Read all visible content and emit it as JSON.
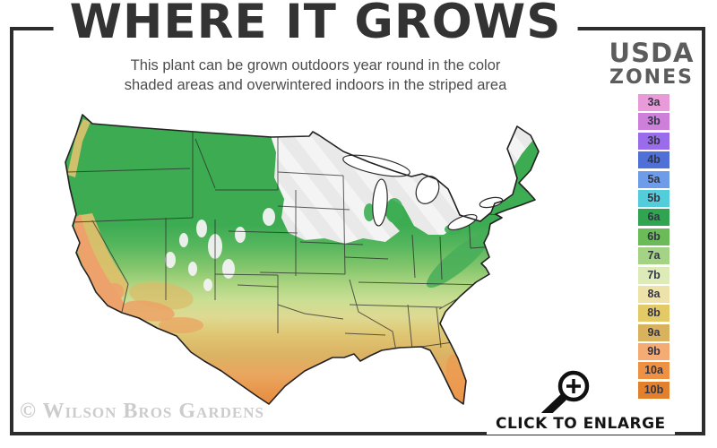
{
  "header": {
    "title": "WHERE IT GROWS",
    "subtitle_line1": "This plant can be grown outdoors year round in the color",
    "subtitle_line2": "shaded areas and overwintered indoors in the striped area"
  },
  "legend": {
    "title_line1": "USDA",
    "title_line2": "ZONES",
    "zones": [
      {
        "label": "3a",
        "color": "#e89bd8"
      },
      {
        "label": "3b",
        "color": "#cd7fd9"
      },
      {
        "label": "3b",
        "color": "#9a6ceb"
      },
      {
        "label": "4b",
        "color": "#4f70d6"
      },
      {
        "label": "5a",
        "color": "#6f9ce8"
      },
      {
        "label": "5b",
        "color": "#54cdda"
      },
      {
        "label": "6a",
        "color": "#30a450"
      },
      {
        "label": "6b",
        "color": "#6bbb58"
      },
      {
        "label": "7a",
        "color": "#a5d386"
      },
      {
        "label": "7b",
        "color": "#dcebb8"
      },
      {
        "label": "8a",
        "color": "#eee2ab"
      },
      {
        "label": "8b",
        "color": "#e4ca67"
      },
      {
        "label": "9a",
        "color": "#d8b25d"
      },
      {
        "label": "9b",
        "color": "#f4ab74"
      },
      {
        "label": "10a",
        "color": "#ef9143"
      },
      {
        "label": "10b",
        "color": "#e2802c"
      }
    ]
  },
  "footer": {
    "watermark": "© Wilson Bros Gardens",
    "enlarge_label": "CLICK TO ENLARGE"
  },
  "colors": {
    "frame_border": "#2d2d2d",
    "title_text": "#333333",
    "subtitle_text": "#4d4d4d",
    "legend_title_text": "#5c5c5c",
    "watermark_text": "#cccccc",
    "map_outline": "#222222",
    "stripe_light": "#f4f4f4",
    "stripe_dark": "#e9e9e9"
  }
}
